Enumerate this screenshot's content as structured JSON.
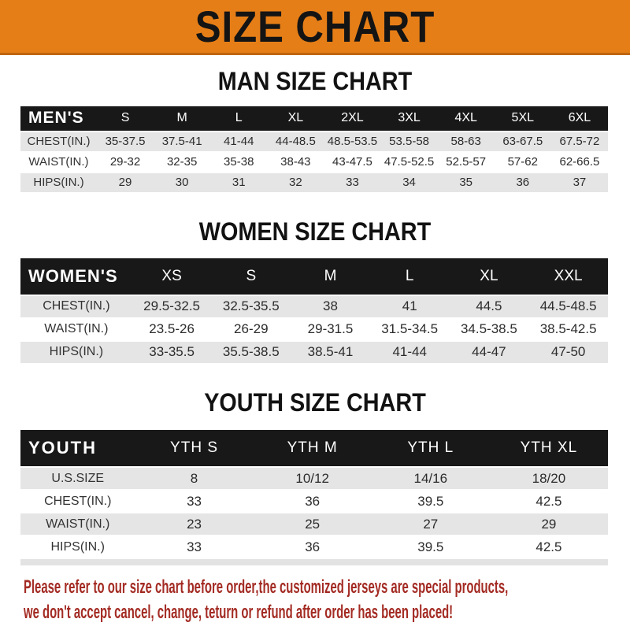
{
  "banner": {
    "title": "SIZE CHART"
  },
  "sections": [
    {
      "title": "MAN SIZE CHART",
      "header_label": "MEN'S",
      "columns": [
        "S",
        "M",
        "L",
        "XL",
        "2XL",
        "3XL",
        "4XL",
        "5XL",
        "6XL"
      ],
      "rows": [
        {
          "label": "CHEST(IN.)",
          "values": [
            "35-37.5",
            "37.5-41",
            "41-44",
            "44-48.5",
            "48.5-53.5",
            "53.5-58",
            "58-63",
            "63-67.5",
            "67.5-72"
          ]
        },
        {
          "label": "WAIST(IN.)",
          "values": [
            "29-32",
            "32-35",
            "35-38",
            "38-43",
            "43-47.5",
            "47.5-52.5",
            "52.5-57",
            "57-62",
            "62-66.5"
          ]
        },
        {
          "label": "HIPS(IN.)",
          "values": [
            "29",
            "30",
            "31",
            "32",
            "33",
            "34",
            "35",
            "36",
            "37"
          ]
        }
      ]
    },
    {
      "title": "WOMEN SIZE CHART",
      "header_label": "WOMEN'S",
      "columns": [
        "XS",
        "S",
        "M",
        "L",
        "XL",
        "XXL"
      ],
      "rows": [
        {
          "label": "CHEST(IN.)",
          "values": [
            "29.5-32.5",
            "32.5-35.5",
            "38",
            "41",
            "44.5",
            "44.5-48.5"
          ]
        },
        {
          "label": "WAIST(IN.)",
          "values": [
            "23.5-26",
            "26-29",
            "29-31.5",
            "31.5-34.5",
            "34.5-38.5",
            "38.5-42.5"
          ]
        },
        {
          "label": "HIPS(IN.)",
          "values": [
            "33-35.5",
            "35.5-38.5",
            "38.5-41",
            "41-44",
            "44-47",
            "47-50"
          ]
        }
      ]
    },
    {
      "title": "YOUTH SIZE CHART",
      "header_label": "YOUTH",
      "columns": [
        "YTH S",
        "YTH M",
        "YTH L",
        "YTH XL"
      ],
      "rows": [
        {
          "label": "U.S.SIZE",
          "values": [
            "8",
            "10/12",
            "14/16",
            "18/20"
          ]
        },
        {
          "label": "CHEST(IN.)",
          "values": [
            "33",
            "36",
            "39.5",
            "42.5"
          ]
        },
        {
          "label": "WAIST(IN.)",
          "values": [
            "23",
            "25",
            "27",
            "29"
          ]
        },
        {
          "label": "HIPS(IN.)",
          "values": [
            "33",
            "36",
            "39.5",
            "42.5"
          ]
        }
      ]
    }
  ],
  "footer": {
    "line1": "Please refer to our size chart before order,the customized jerseys are special products,",
    "line2": "we don't accept cancel, change, teturn or refund after order has been placed!"
  },
  "colors": {
    "banner_bg": "#e67e17",
    "banner_text": "#141414",
    "table_header_bg": "#181818",
    "table_header_text": "#ffffff",
    "row_alt_bg": "#e5e5e5",
    "footer_text": "#a32b23"
  }
}
